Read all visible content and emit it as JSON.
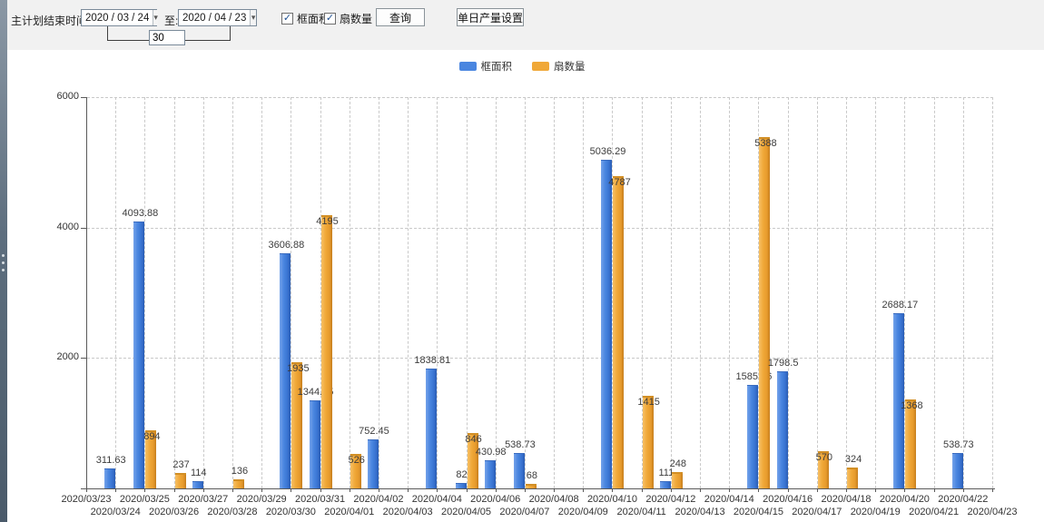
{
  "toolbar": {
    "label": "主计划结束时间:",
    "date_from": "2020 / 03 / 24",
    "to_label": "至:",
    "date_to": "2020 / 04 / 23",
    "days_value": "30",
    "checkbox_frame_label": "框面积",
    "checkbox_fan_label": "扇数量",
    "checkbox_checked_glyph": "✓",
    "query_button": "查询",
    "daily_output_button": "单日产量设置",
    "dropdown_arrow_glyph": "▾"
  },
  "legend": [
    {
      "label": "框面积",
      "color": "#4a86e0"
    },
    {
      "label": "扇数量",
      "color": "#f0a838"
    }
  ],
  "chart_data": {
    "type": "bar",
    "title": "",
    "xlabel": "",
    "ylabel": "",
    "ylim": [
      0,
      6000
    ],
    "yticks": [
      0,
      2000,
      4000,
      6000
    ],
    "grid": true,
    "legend_position": "top",
    "categories": [
      "2020/03/23",
      "2020/03/24",
      "2020/03/25",
      "2020/03/26",
      "2020/03/27",
      "2020/03/28",
      "2020/03/29",
      "2020/03/30",
      "2020/03/31",
      "2020/04/01",
      "2020/04/02",
      "2020/04/03",
      "2020/04/04",
      "2020/04/05",
      "2020/04/06",
      "2020/04/07",
      "2020/04/08",
      "2020/04/09",
      "2020/04/10",
      "2020/04/11",
      "2020/04/12",
      "2020/04/13",
      "2020/04/14",
      "2020/04/15",
      "2020/04/16",
      "2020/04/17",
      "2020/04/18",
      "2020/04/19",
      "2020/04/20",
      "2020/04/21",
      "2020/04/22",
      "2020/04/23"
    ],
    "series": [
      {
        "name": "框面积",
        "color": "#4a86e0",
        "values": [
          0,
          311.63,
          4093.88,
          0,
          114,
          0,
          0,
          3606.88,
          1344.95,
          0,
          752.45,
          0,
          1838.81,
          82,
          430.98,
          538.73,
          0,
          0,
          5036.29,
          0,
          111,
          0,
          0,
          1585.96,
          1798.5,
          0,
          0,
          0,
          2688.17,
          0,
          538.73,
          0
        ]
      },
      {
        "name": "扇数量",
        "color": "#f0a838",
        "values": [
          0,
          0,
          894,
          237,
          0,
          136,
          0,
          1935,
          4195,
          526,
          0,
          0,
          0,
          846,
          0,
          68,
          0,
          0,
          4787,
          1415,
          248,
          0,
          0,
          5388,
          0,
          570,
          324,
          0,
          1368,
          0,
          0,
          0
        ]
      }
    ]
  }
}
